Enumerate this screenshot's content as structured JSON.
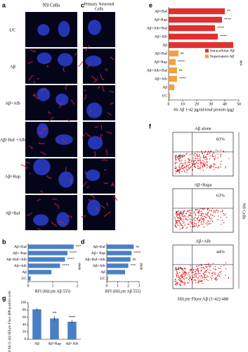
{
  "panel_labels": [
    "a",
    "b",
    "c",
    "d",
    "e",
    "f",
    "g"
  ],
  "microscopy": {
    "n9_title": "N9 Cells",
    "neuronal_title": [
      "Primary Neuronal",
      "Cells"
    ],
    "conditions": [
      "UC",
      "Aβ",
      "Aβ+Alb",
      "Aβ+Baf +Alb",
      "Aβ+Rap",
      "Aβ+Baf"
    ]
  },
  "chart_data": [
    {
      "type": "barh",
      "categories": [
        "Aβ+Baf",
        "Aβ+ Rap",
        "Aβ+Baf+Alb",
        "Aβ+Alb",
        "Aβ",
        "UC"
      ],
      "series": [
        {
          "color": "#4a7fc4",
          "values": [
            1.85,
            1.6,
            1.5,
            1.3,
            0.95,
            0.1
          ],
          "significance": [
            "***",
            "****",
            "****",
            "****",
            null,
            null
          ]
        }
      ],
      "xlim": [
        0,
        2
      ],
      "xticks": [
        0,
        1,
        2
      ],
      "x_label": "RFI (HiLyte  Aβ 555)",
      "bracket_label": "####"
    },
    {
      "type": "barh",
      "categories": [
        "Aβ+Baf",
        "Aβ+ Rap",
        "Aβ+Baf+Alb",
        "Aβ+Alb",
        "Aβ",
        "UC"
      ],
      "series": [
        {
          "color": "#4a7fc4",
          "values": [
            2.5,
            2.3,
            2.2,
            2.0,
            1.7,
            0.1
          ],
          "significance": [
            "ns",
            "****",
            "ns",
            "***",
            null,
            null
          ]
        }
      ],
      "xlim": [
        0,
        3
      ],
      "xticks": [
        0,
        1,
        2,
        3
      ],
      "x_label": "RFI (HiLyte  Aβ 555)",
      "bracket_label": "####"
    },
    {
      "type": "barh",
      "categories": [
        "Aβ+Baf",
        "Aβ+Rap",
        "Aβ+Alb+Baf",
        "Aβ+Alb",
        "Aβ",
        "Aβ+Baf",
        "Aβ+Rap",
        "Aβ+Alb+Baf",
        "Aβ+Alb",
        "Aβ",
        "UC"
      ],
      "series": [
        {
          "name": "Intracellular Aβ",
          "color": "#e03030",
          "values": [
            40,
            38,
            33,
            35,
            46,
            null,
            null,
            null,
            null,
            null,
            null
          ],
          "significance": [
            "**",
            "****",
            "****",
            "****",
            null,
            null,
            null,
            null,
            null,
            null,
            null
          ]
        },
        {
          "name": "Supernatent Aβ",
          "color": "#f5a040",
          "values": [
            null,
            null,
            null,
            null,
            null,
            7,
            5,
            6,
            6,
            4,
            1
          ],
          "significance": [
            null,
            null,
            null,
            null,
            null,
            "ns",
            "****",
            "ns",
            "****",
            null,
            null
          ]
        }
      ],
      "xlim": [
        0,
        50
      ],
      "xticks": [
        0,
        10,
        20,
        30,
        40,
        50
      ],
      "x_label": "Hs Aβ 1-42 pg/ml/total  protein (μg)",
      "bracket_label": "###"
    },
    {
      "type": "bar",
      "categories": [
        "Aβ",
        "Aβ+Rap",
        "Aβ+Alb"
      ],
      "values": [
        82,
        57,
        48
      ],
      "errors": [
        3,
        6,
        4
      ],
      "significance": [
        null,
        "**",
        "***"
      ],
      "color": "#4a7fc4",
      "ylim": [
        0,
        100
      ],
      "yticks": [
        0,
        20,
        40,
        60,
        80,
        100
      ],
      "y_label": "% of Aβ (1-42) HiLyte Fluor 488-positive cells"
    }
  ],
  "flow_cytometry": {
    "plots": [
      {
        "title": "Aβ alone",
        "upper_right": "83%",
        "lower_left": "14%"
      },
      {
        "title": "Aβ+Rapa",
        "upper_right": "63%",
        "lower_left": "35%"
      },
      {
        "title": "Aβ+Alb",
        "upper_right": "44%",
        "lower_left": "54%"
      }
    ],
    "x_label": "HiLyte  Fluor Aβ (1-42) 488",
    "side_label": "N9 Cells"
  }
}
